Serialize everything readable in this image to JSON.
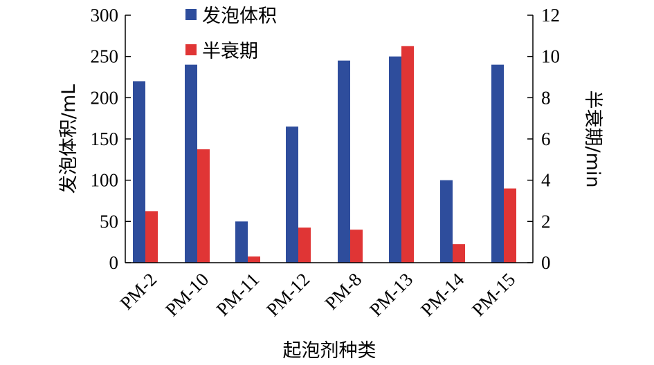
{
  "chart_data": {
    "type": "bar",
    "xlabel": "起泡剂种类",
    "ylabel": "发泡体积/mL",
    "y2label": "半衰期/min",
    "categories": [
      "PM-2",
      "PM-10",
      "PM-11",
      "PM-12",
      "PM-8",
      "PM-13",
      "PM-14",
      "PM-15"
    ],
    "ylim": [
      0,
      300
    ],
    "y2lim": [
      0,
      12
    ],
    "yticks": [
      "0",
      "50",
      "100",
      "150",
      "200",
      "250",
      "300"
    ],
    "y2ticks": [
      "0",
      "2",
      "4",
      "6",
      "8",
      "10",
      "12"
    ],
    "legend_position": "top-center",
    "grid": false,
    "series": [
      {
        "name": "发泡体积",
        "axis": "left",
        "color": "#2E4D9C",
        "values": [
          220,
          240,
          50,
          165,
          245,
          250,
          100,
          240
        ]
      },
      {
        "name": "半衰期",
        "axis": "right",
        "color": "#E03535",
        "values": [
          2.5,
          5.5,
          0.3,
          1.7,
          1.6,
          10.5,
          0.9,
          3.6
        ]
      }
    ]
  }
}
